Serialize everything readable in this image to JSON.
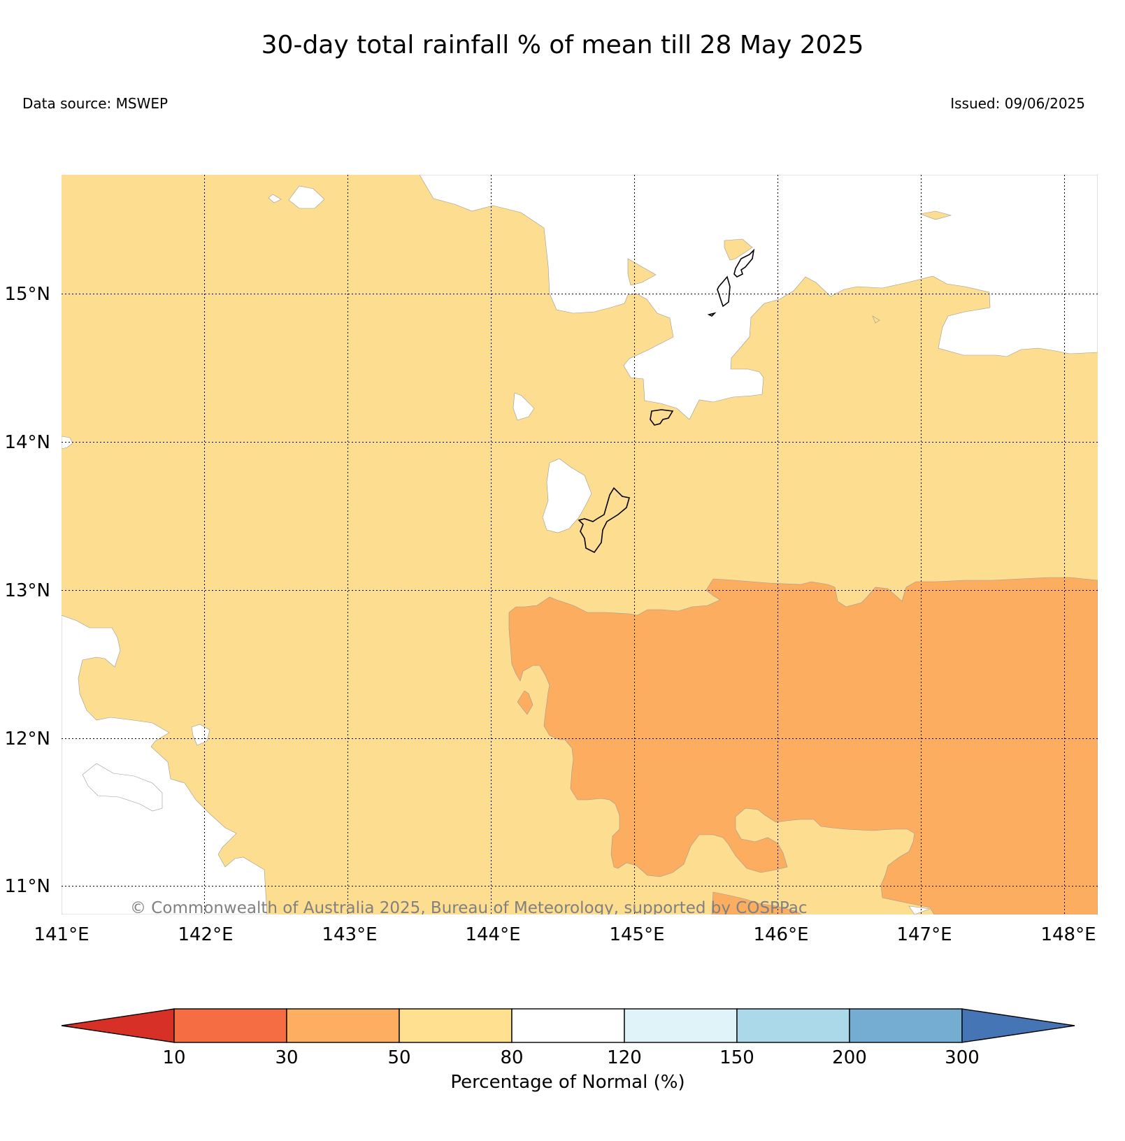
{
  "header": {
    "title": "30-day total rainfall % of mean till 28 May 2025",
    "data_source": "Data source: MSWEP",
    "issued": "Issued: 09/06/2025"
  },
  "map": {
    "lon_ticks": [
      "141°E",
      "142°E",
      "143°E",
      "144°E",
      "145°E",
      "146°E",
      "147°E",
      "148°E"
    ],
    "lat_ticks": [
      "15°N",
      "14°N",
      "13°N",
      "12°N",
      "11°N"
    ],
    "copyright": "© Commonwealth of Australia 2025, Bureau of Meteorology, supported by COSPPac",
    "colors": {
      "band_50_80": "#fddd90",
      "band_30_50": "#fcad60",
      "band_80_120": "#ffffff"
    }
  },
  "legend": {
    "label": "Percentage of Normal (%)",
    "ticks": [
      "10",
      "30",
      "50",
      "80",
      "120",
      "150",
      "200",
      "300"
    ],
    "colors": [
      "#d73027",
      "#f46d43",
      "#fdae61",
      "#fee090",
      "#ffffff",
      "#e0f3f8",
      "#abd9e9",
      "#74add1",
      "#4575b4"
    ]
  }
}
